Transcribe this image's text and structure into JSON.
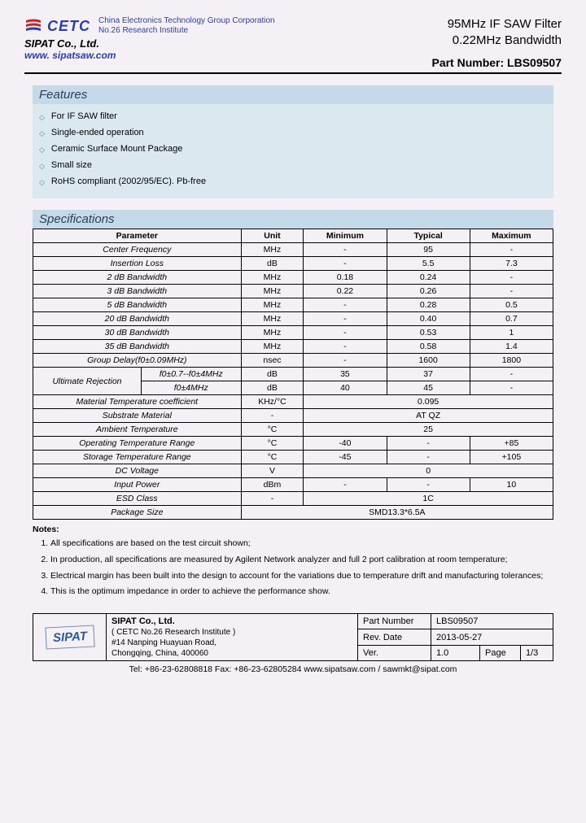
{
  "header": {
    "logo_text": "CETC",
    "logo_sub1": "China Electronics Technology Group Corporation",
    "logo_sub2": "No.26 Research Institute",
    "company": "SIPAT Co., Ltd.",
    "website": "www. sipatsaw.com",
    "title1": "95MHz IF SAW Filter",
    "title2": "0.22MHz Bandwidth",
    "part_label": "Part Number: LBS09507"
  },
  "features": {
    "title": "Features",
    "items": [
      "For IF SAW filter",
      "Single-ended operation",
      "Ceramic Surface Mount Package",
      "Small size",
      "RoHS compliant (2002/95/EC). Pb-free"
    ]
  },
  "specs": {
    "title": "Specifications",
    "headers": [
      "Parameter",
      "Unit",
      "Minimum",
      "Typical",
      "Maximum"
    ],
    "ultimate_rejection": "Ultimate Rejection",
    "rows": [
      {
        "p": "Center Frequency",
        "u": "MHz",
        "min": "-",
        "typ": "95",
        "max": "-"
      },
      {
        "p": "Insertion Loss",
        "u": "dB",
        "min": "-",
        "typ": "5.5",
        "max": "7.3"
      },
      {
        "p": "2 dB Bandwidth",
        "u": "MHz",
        "min": "0.18",
        "typ": "0.24",
        "max": "-"
      },
      {
        "p": "3 dB Bandwidth",
        "u": "MHz",
        "min": "0.22",
        "typ": "0.26",
        "max": "-"
      },
      {
        "p": "5 dB Bandwidth",
        "u": "MHz",
        "min": "-",
        "typ": "0.28",
        "max": "0.5"
      },
      {
        "p": "20 dB Bandwidth",
        "u": "MHz",
        "min": "-",
        "typ": "0.40",
        "max": "0.7"
      },
      {
        "p": "30 dB Bandwidth",
        "u": "MHz",
        "min": "-",
        "typ": "0.53",
        "max": "1"
      },
      {
        "p": "35 dB Bandwidth",
        "u": "MHz",
        "min": "-",
        "typ": "0.58",
        "max": "1.4"
      },
      {
        "p": "Group Delay(f0±0.09MHz)",
        "u": "nsec",
        "min": "-",
        "typ": "1600",
        "max": "1800"
      }
    ],
    "ur_rows": [
      {
        "p": "f0±0.7--f0±4MHz",
        "u": "dB",
        "min": "35",
        "typ": "37",
        "max": "-"
      },
      {
        "p": "f0±4MHz",
        "u": "dB",
        "min": "40",
        "typ": "45",
        "max": "-"
      }
    ],
    "rows2": [
      {
        "p": "Material Temperature coefficient",
        "u": "KHz/°C",
        "v": "0.095"
      },
      {
        "p": "Substrate Material",
        "u": "-",
        "v": "AT QZ"
      },
      {
        "p": "Ambient Temperature",
        "u": "°C",
        "v": "25"
      }
    ],
    "rows3": [
      {
        "p": "Operating Temperature Range",
        "u": "°C",
        "min": "-40",
        "typ": "-",
        "max": "+85"
      },
      {
        "p": "Storage Temperature Range",
        "u": "°C",
        "min": "-45",
        "typ": "-",
        "max": "+105"
      }
    ],
    "rows4": [
      {
        "p": "DC Voltage",
        "u": "V",
        "v": "0"
      },
      {
        "p": "Input Power",
        "u": "dBm",
        "min": "-",
        "typ": "-",
        "max": "10"
      },
      {
        "p": "ESD Class",
        "u": "-",
        "v": "1C"
      },
      {
        "p": "Package Size",
        "u": "",
        "v": "SMD13.3*6.5A",
        "span": 4
      }
    ]
  },
  "notes": {
    "title": "Notes:",
    "items": [
      "All specifications are based on the test circuit shown;",
      "In production, all specifications are measured by Agilent Network analyzer and full 2 port calibration at room temperature;",
      "Electrical margin has been built into the design to account for the variations due to temperature drift and manufacturing tolerances;",
      "This is the optimum impedance in order to achieve the performance show."
    ]
  },
  "footer": {
    "logo": "SIPAT",
    "company": "SIPAT Co., Ltd.",
    "inst": "( CETC No.26 Research Institute )",
    "addr1": "#14 Nanping Huayuan Road,",
    "addr2": "Chongqing, China, 400060",
    "pn_label": "Part Number",
    "pn": "LBS09507",
    "rev_label": "Rev. Date",
    "rev": "2013-05-27",
    "ver_label": "Ver.",
    "ver": "1.0",
    "page_label": "Page",
    "page": "1/3",
    "contact": "Tel: +86-23-62808818      Fax: +86-23-62805284      www.sipatsaw.com / sawmkt@sipat.com"
  }
}
